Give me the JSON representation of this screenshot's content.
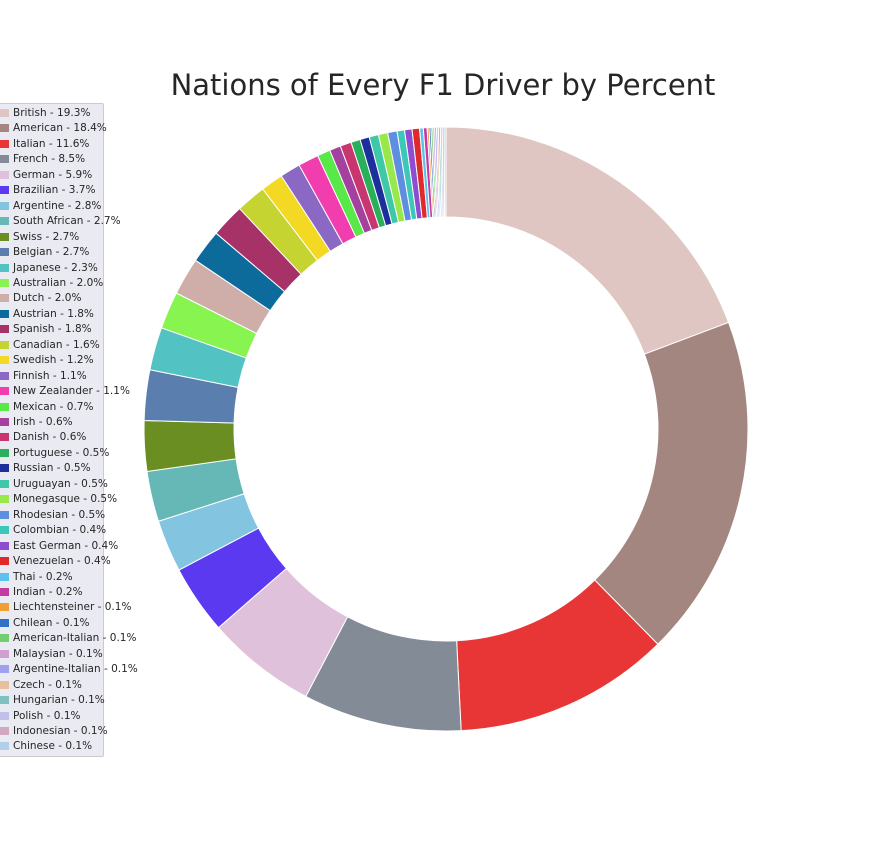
{
  "chart_data": {
    "type": "pie",
    "title": "Nations of Every F1 Driver by Percent",
    "style": "donut",
    "slices": [
      {
        "label": "British - 19.3%",
        "value": 19.3,
        "color": "#e0c6c2"
      },
      {
        "label": "American - 18.4%",
        "value": 18.4,
        "color": "#a48681"
      },
      {
        "label": "Italian - 11.6%",
        "value": 11.6,
        "color": "#e83636"
      },
      {
        "label": "French - 8.5%",
        "value": 8.5,
        "color": "#838b97"
      },
      {
        "label": "German - 5.9%",
        "value": 5.9,
        "color": "#e0c1dc"
      },
      {
        "label": "Brazilian - 3.7%",
        "value": 3.7,
        "color": "#5b39f0"
      },
      {
        "label": "Argentine - 2.8%",
        "value": 2.8,
        "color": "#83c5e0"
      },
      {
        "label": "South African - 2.7%",
        "value": 2.7,
        "color": "#66b8b6"
      },
      {
        "label": "Swiss - 2.7%",
        "value": 2.7,
        "color": "#6b8e23"
      },
      {
        "label": "Belgian - 2.7%",
        "value": 2.7,
        "color": "#5a7fae"
      },
      {
        "label": "Japanese - 2.3%",
        "value": 2.3,
        "color": "#53c2c2"
      },
      {
        "label": "Australian - 2.0%",
        "value": 2.0,
        "color": "#88f44f"
      },
      {
        "label": "Dutch - 2.0%",
        "value": 2.0,
        "color": "#cfaeaa"
      },
      {
        "label": "Austrian - 1.8%",
        "value": 1.8,
        "color": "#0c6b9b"
      },
      {
        "label": "Spanish - 1.8%",
        "value": 1.8,
        "color": "#a63268"
      },
      {
        "label": "Canadian - 1.6%",
        "value": 1.6,
        "color": "#c6d432"
      },
      {
        "label": "Swedish - 1.2%",
        "value": 1.2,
        "color": "#f4d924"
      },
      {
        "label": "Finnish - 1.1%",
        "value": 1.1,
        "color": "#8a68c4"
      },
      {
        "label": "New Zealander - 1.1%",
        "value": 1.1,
        "color": "#f23dae"
      },
      {
        "label": "Mexican - 0.7%",
        "value": 0.7,
        "color": "#58e848"
      },
      {
        "label": "Irish - 0.6%",
        "value": 0.6,
        "color": "#a4409e"
      },
      {
        "label": "Danish - 0.6%",
        "value": 0.6,
        "color": "#c9356e"
      },
      {
        "label": "Portuguese - 0.5%",
        "value": 0.5,
        "color": "#2ab05a"
      },
      {
        "label": "Russian - 0.5%",
        "value": 0.5,
        "color": "#1c2f9c"
      },
      {
        "label": "Uruguayan - 0.5%",
        "value": 0.5,
        "color": "#3ec8a8"
      },
      {
        "label": "Monegasque - 0.5%",
        "value": 0.5,
        "color": "#97e848"
      },
      {
        "label": "Rhodesian - 0.5%",
        "value": 0.5,
        "color": "#5e8ee0"
      },
      {
        "label": "Colombian - 0.4%",
        "value": 0.4,
        "color": "#3cc8b8"
      },
      {
        "label": "East German - 0.4%",
        "value": 0.4,
        "color": "#8e4cd0"
      },
      {
        "label": "Venezuelan - 0.4%",
        "value": 0.4,
        "color": "#e02a2a"
      },
      {
        "label": "Thai - 0.2%",
        "value": 0.2,
        "color": "#5cc0f0"
      },
      {
        "label": "Indian - 0.2%",
        "value": 0.2,
        "color": "#c43aa0"
      },
      {
        "label": "Liechtensteiner - 0.1%",
        "value": 0.1,
        "color": "#f0a030"
      },
      {
        "label": "Chilean - 0.1%",
        "value": 0.1,
        "color": "#3070c8"
      },
      {
        "label": "American-Italian - 0.1%",
        "value": 0.1,
        "color": "#70d070"
      },
      {
        "label": "Malaysian - 0.1%",
        "value": 0.1,
        "color": "#d0a0d0"
      },
      {
        "label": "Argentine-Italian - 0.1%",
        "value": 0.1,
        "color": "#a0a0f0"
      },
      {
        "label": "Czech - 0.1%",
        "value": 0.1,
        "color": "#e8c0a0"
      },
      {
        "label": "Hungarian - 0.1%",
        "value": 0.1,
        "color": "#80c0c0"
      },
      {
        "label": "Polish - 0.1%",
        "value": 0.1,
        "color": "#c0c0e8"
      },
      {
        "label": "Indonesian - 0.1%",
        "value": 0.1,
        "color": "#d0a8c0"
      },
      {
        "label": "Chinese - 0.1%",
        "value": 0.1,
        "color": "#b0d0e8"
      }
    ],
    "start_angle": "12 o'clock",
    "direction": "clockwise",
    "legend_placement": "left"
  }
}
